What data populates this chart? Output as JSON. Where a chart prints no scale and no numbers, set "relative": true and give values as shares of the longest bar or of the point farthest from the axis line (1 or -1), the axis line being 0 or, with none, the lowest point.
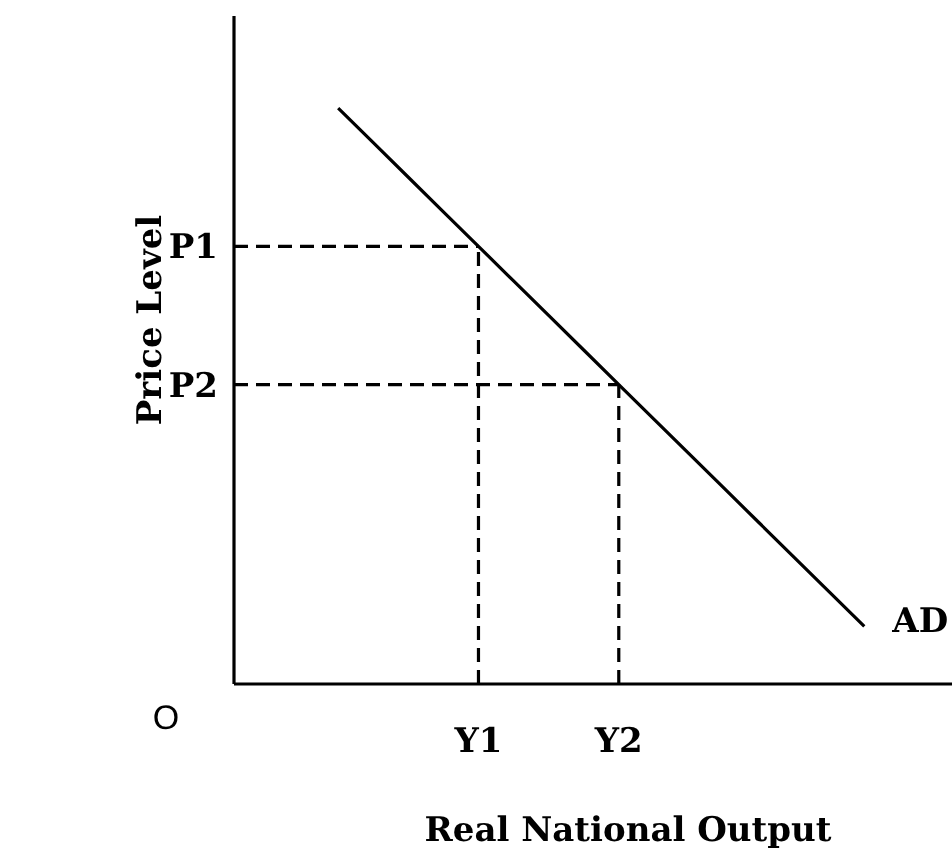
{
  "chart_data": {
    "type": "line",
    "relative": true,
    "xlabel": "Real National Output",
    "ylabel": "Price Level",
    "line_style": "solid",
    "categories": [
      null,
      null,
      null,
      null,
      "Y1",
      null,
      null,
      null,
      "Y2",
      null,
      null,
      null,
      null,
      null,
      null,
      null
    ],
    "series": [
      {
        "name": "AD",
        "color": "#000000",
        "values": [
          1,
          0.94,
          0.88,
          0.82,
          0.76,
          0.7,
          0.64,
          0.58,
          0.52,
          0.46,
          0.4,
          0.34,
          0.28,
          0.22,
          0.16,
          0.1
        ]
      }
    ],
    "ref_lines": [
      {
        "axis": "y",
        "value": 0.76,
        "label": "P1",
        "color": "#000000",
        "line_style": "dashed"
      },
      {
        "axis": "y",
        "value": 0.52,
        "label": "P2",
        "color": "#000000",
        "line_style": "dashed"
      },
      {
        "axis": "x",
        "value": "Y1",
        "color": "#000000",
        "line_style": "dashed"
      },
      {
        "axis": "x",
        "value": "Y2",
        "color": "#000000",
        "line_style": "dashed"
      }
    ],
    "annotations": [
      "O"
    ]
  }
}
